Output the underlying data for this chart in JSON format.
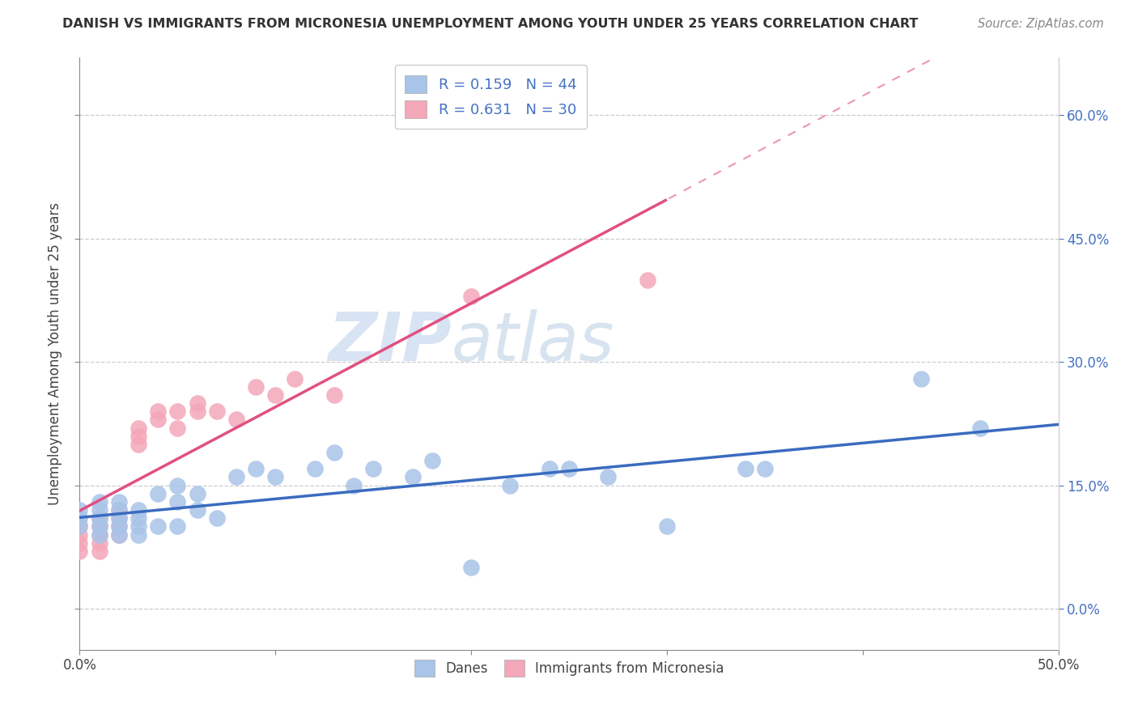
{
  "title": "DANISH VS IMMIGRANTS FROM MICRONESIA UNEMPLOYMENT AMONG YOUTH UNDER 25 YEARS CORRELATION CHART",
  "source": "Source: ZipAtlas.com",
  "ylabel": "Unemployment Among Youth under 25 years",
  "yticks": [
    "0.0%",
    "15.0%",
    "30.0%",
    "45.0%",
    "60.0%"
  ],
  "ytick_vals": [
    0.0,
    0.15,
    0.3,
    0.45,
    0.6
  ],
  "xlim": [
    0.0,
    0.5
  ],
  "ylim": [
    -0.05,
    0.67
  ],
  "danes_color": "#a8c4e8",
  "danes_line_color": "#3a6bbf",
  "micronesia_color": "#f4a7b9",
  "micronesia_line_color": "#e05080",
  "watermark_zip": "ZIP",
  "watermark_atlas": "atlas",
  "danes_x": [
    0.0,
    0.0,
    0.0,
    0.01,
    0.01,
    0.01,
    0.01,
    0.01,
    0.02,
    0.02,
    0.02,
    0.02,
    0.02,
    0.03,
    0.03,
    0.03,
    0.03,
    0.04,
    0.04,
    0.05,
    0.05,
    0.05,
    0.06,
    0.06,
    0.07,
    0.08,
    0.09,
    0.1,
    0.12,
    0.13,
    0.14,
    0.15,
    0.17,
    0.18,
    0.2,
    0.22,
    0.24,
    0.25,
    0.27,
    0.3,
    0.34,
    0.35,
    0.43,
    0.46
  ],
  "danes_y": [
    0.12,
    0.11,
    0.1,
    0.12,
    0.13,
    0.11,
    0.1,
    0.09,
    0.13,
    0.12,
    0.11,
    0.1,
    0.09,
    0.12,
    0.11,
    0.1,
    0.09,
    0.14,
    0.1,
    0.15,
    0.13,
    0.1,
    0.14,
    0.12,
    0.11,
    0.16,
    0.17,
    0.16,
    0.17,
    0.19,
    0.15,
    0.17,
    0.16,
    0.18,
    0.05,
    0.15,
    0.17,
    0.17,
    0.16,
    0.1,
    0.17,
    0.17,
    0.28,
    0.22
  ],
  "micro_x": [
    0.0,
    0.0,
    0.0,
    0.0,
    0.01,
    0.01,
    0.01,
    0.01,
    0.01,
    0.02,
    0.02,
    0.02,
    0.02,
    0.03,
    0.03,
    0.03,
    0.04,
    0.04,
    0.05,
    0.05,
    0.06,
    0.06,
    0.07,
    0.08,
    0.09,
    0.1,
    0.11,
    0.13,
    0.2,
    0.29
  ],
  "micro_y": [
    0.1,
    0.09,
    0.08,
    0.07,
    0.11,
    0.1,
    0.09,
    0.08,
    0.07,
    0.12,
    0.11,
    0.1,
    0.09,
    0.22,
    0.21,
    0.2,
    0.24,
    0.23,
    0.24,
    0.22,
    0.25,
    0.24,
    0.24,
    0.23,
    0.27,
    0.26,
    0.28,
    0.26,
    0.38,
    0.4
  ],
  "danes_R": 0.159,
  "danes_N": 44,
  "micro_R": 0.631,
  "micro_N": 30
}
